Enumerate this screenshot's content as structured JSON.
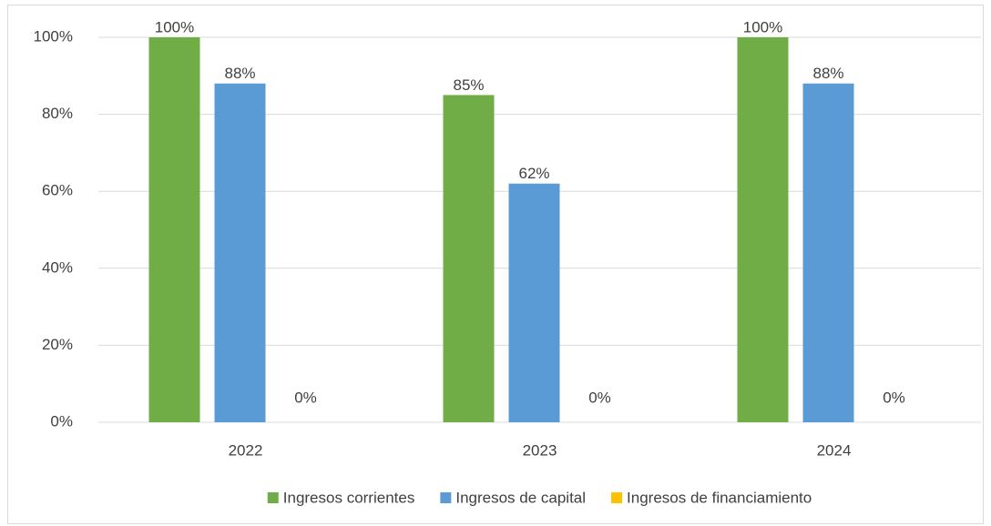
{
  "chart_data": {
    "type": "bar",
    "categories": [
      "2022",
      "2023",
      "2024"
    ],
    "series": [
      {
        "name": "Ingresos corrientes",
        "color": "#70ad47",
        "values": [
          100,
          85,
          100
        ],
        "value_labels": [
          "100%",
          "85%",
          "100%"
        ]
      },
      {
        "name": "Ingresos de capital",
        "color": "#5b9bd5",
        "values": [
          88,
          62,
          88
        ],
        "value_labels": [
          "88%",
          "62%",
          "88%"
        ]
      },
      {
        "name": "Ingresos de financiamiento",
        "color": "#ffc000",
        "values": [
          0,
          0,
          0
        ],
        "value_labels": [
          "0%",
          "0%",
          "0%"
        ]
      }
    ],
    "ylim": [
      0,
      100
    ],
    "yticks": [
      {
        "value": 0,
        "label": "0%"
      },
      {
        "value": 20,
        "label": "20%"
      },
      {
        "value": 40,
        "label": "40%"
      },
      {
        "value": 60,
        "label": "60%"
      },
      {
        "value": 80,
        "label": "80%"
      },
      {
        "value": 100,
        "label": "100%"
      }
    ],
    "grid": true,
    "legend": "bottom"
  }
}
